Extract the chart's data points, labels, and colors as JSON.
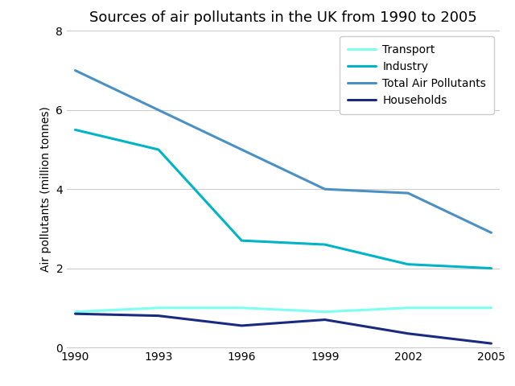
{
  "title": "Sources of air pollutants in the UK from 1990 to 2005",
  "ylabel": "Air pollutants (million tonnes)",
  "years": [
    1990,
    1993,
    1996,
    1999,
    2002,
    2005
  ],
  "series": {
    "Transport": {
      "values": [
        0.9,
        1.0,
        1.0,
        0.9,
        1.0,
        1.0
      ],
      "color": "#7FFFEF",
      "linewidth": 2.2
    },
    "Industry": {
      "values": [
        5.5,
        5.0,
        2.7,
        2.6,
        2.1,
        2.0
      ],
      "color": "#00B4C8",
      "linewidth": 2.2
    },
    "Total Air Pollutants": {
      "values": [
        7.0,
        6.0,
        5.0,
        4.0,
        3.9,
        2.9
      ],
      "color": "#4A90C4",
      "linewidth": 2.2
    },
    "Households": {
      "values": [
        0.85,
        0.8,
        0.55,
        0.7,
        0.35,
        0.1
      ],
      "color": "#1A2A80",
      "linewidth": 2.2
    }
  },
  "ylim": [
    0,
    8
  ],
  "yticks": [
    0,
    2,
    4,
    6,
    8
  ],
  "xticks": [
    1990,
    1993,
    1996,
    1999,
    2002,
    2005
  ],
  "legend_order": [
    "Transport",
    "Industry",
    "Total Air Pollutants",
    "Households"
  ],
  "background_color": "#ffffff",
  "grid_color": "#cccccc",
  "title_fontsize": 13,
  "label_fontsize": 10,
  "tick_fontsize": 10,
  "legend_fontsize": 10
}
